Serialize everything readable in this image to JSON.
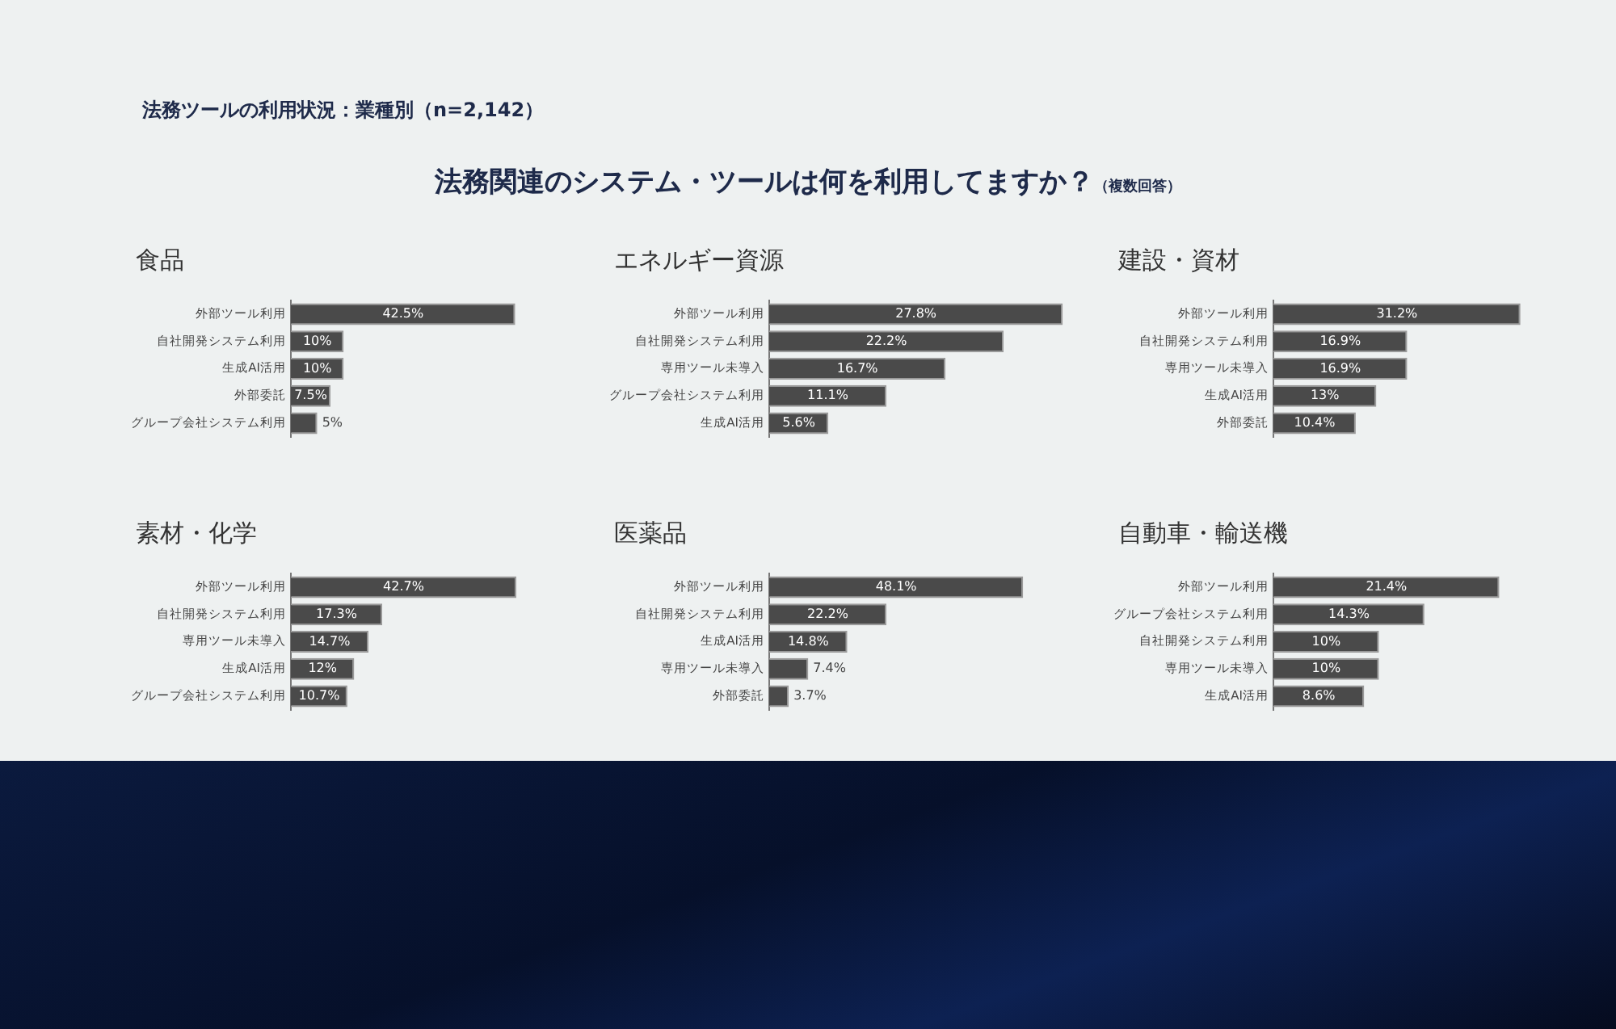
{
  "chart_data": [
    {
      "type": "other",
      "title": "法務関連のシステム・ツールは何を利用してますか？",
      "subtitle": "法務ツールの利用状況：業種別（n=2,142）",
      "annotations": [
        "（複数回答）"
      ]
    },
    {
      "type": "bar",
      "orientation": "horizontal",
      "title": "食品",
      "categories": [
        "外部ツール利用",
        "自社開発システム利用",
        "生成AI活用",
        "外部委託",
        "グループ会社システム利用"
      ],
      "values": [
        42.5,
        10,
        10,
        7.5,
        5
      ],
      "value_labels": [
        "42.5%",
        "10%",
        "10%",
        "7.5%",
        "5%"
      ],
      "color": "#4a4a4a",
      "tick_labels": "y",
      "grid": false,
      "legend": false
    },
    {
      "type": "bar",
      "orientation": "horizontal",
      "title": "エネルギー資源",
      "categories": [
        "外部ツール利用",
        "自社開発システム利用",
        "専用ツール未導入",
        "グループ会社システム利用",
        "生成AI活用"
      ],
      "values": [
        27.8,
        22.2,
        16.7,
        11.1,
        5.6
      ],
      "value_labels": [
        "27.8%",
        "22.2%",
        "16.7%",
        "11.1%",
        "5.6%"
      ],
      "color": "#4a4a4a",
      "tick_labels": "y",
      "grid": false,
      "legend": false
    },
    {
      "type": "bar",
      "orientation": "horizontal",
      "title": "建設・資材",
      "categories": [
        "外部ツール利用",
        "自社開発システム利用",
        "専用ツール未導入",
        "生成AI活用",
        "外部委託"
      ],
      "values": [
        31.2,
        16.9,
        16.9,
        13,
        10.4
      ],
      "value_labels": [
        "31.2%",
        "16.9%",
        "16.9%",
        "13%",
        "10.4%"
      ],
      "color": "#4a4a4a",
      "tick_labels": "y",
      "grid": false,
      "legend": false
    },
    {
      "type": "bar",
      "orientation": "horizontal",
      "title": "素材・化学",
      "categories": [
        "外部ツール利用",
        "自社開発システム利用",
        "専用ツール未導入",
        "生成AI活用",
        "グループ会社システム利用"
      ],
      "values": [
        42.7,
        17.3,
        14.7,
        12,
        10.7
      ],
      "value_labels": [
        "42.7%",
        "17.3%",
        "14.7%",
        "12%",
        "10.7%"
      ],
      "color": "#4a4a4a",
      "tick_labels": "y",
      "grid": false,
      "legend": false
    },
    {
      "type": "bar",
      "orientation": "horizontal",
      "title": "医薬品",
      "categories": [
        "外部ツール利用",
        "自社開発システム利用",
        "生成AI活用",
        "専用ツール未導入",
        "外部委託"
      ],
      "values": [
        48.1,
        22.2,
        14.8,
        7.4,
        3.7
      ],
      "value_labels": [
        "48.1%",
        "22.2%",
        "14.8%",
        "7.4%",
        "3.7%"
      ],
      "color": "#4a4a4a",
      "tick_labels": "y",
      "grid": false,
      "legend": false
    },
    {
      "type": "bar",
      "orientation": "horizontal",
      "title": "自動車・輸送機",
      "categories": [
        "外部ツール利用",
        "グループ会社システム利用",
        "自社開発システム利用",
        "専用ツール未導入",
        "生成AI活用"
      ],
      "values": [
        21.4,
        14.3,
        10,
        10,
        8.6
      ],
      "value_labels": [
        "21.4%",
        "14.3%",
        "10%",
        "10%",
        "8.6%"
      ],
      "color": "#4a4a4a",
      "tick_labels": "y",
      "grid": false,
      "legend": false
    }
  ]
}
